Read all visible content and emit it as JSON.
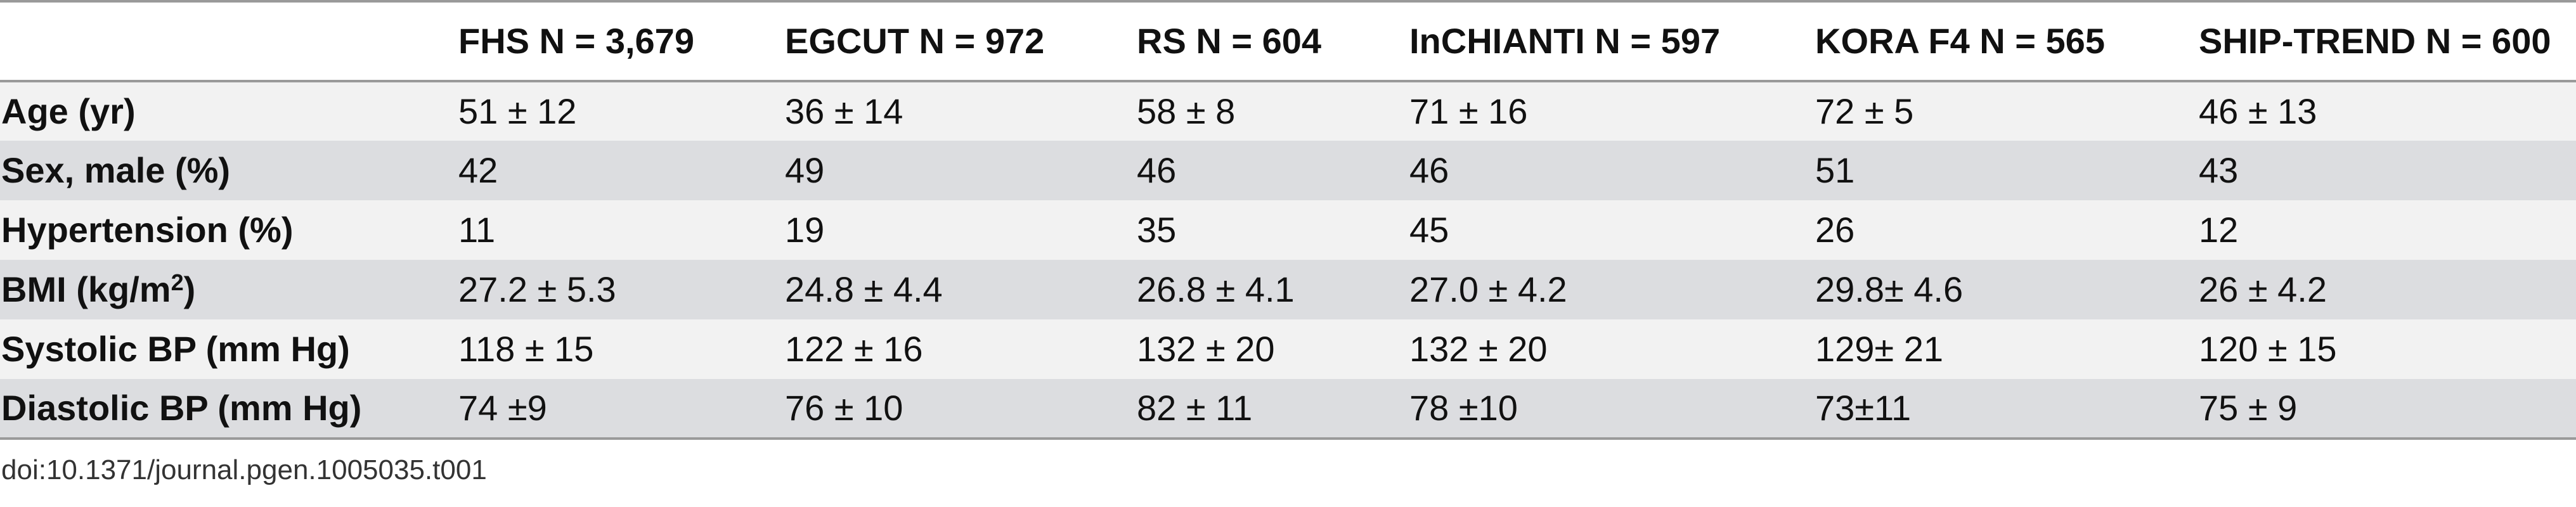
{
  "table": {
    "columns": [
      "",
      "FHS N = 3,679",
      "EGCUT N = 972",
      "RS N = 604",
      "InCHIANTI N = 597",
      "KORA F4 N = 565",
      "SHIP-TREND N = 600"
    ],
    "rows": [
      {
        "label": "Age (yr)",
        "label_sup": "",
        "label_tail": "",
        "values": [
          "51 ± 12",
          "36 ± 14",
          "58 ± 8",
          "71 ± 16",
          "72 ± 5",
          "46 ± 13"
        ]
      },
      {
        "label": "Sex, male (%)",
        "label_sup": "",
        "label_tail": "",
        "values": [
          "42",
          "49",
          "46",
          "46",
          "51",
          "43"
        ]
      },
      {
        "label": "Hypertension (%)",
        "label_sup": "",
        "label_tail": "",
        "values": [
          "11",
          "19",
          "35",
          "45",
          "26",
          "12"
        ]
      },
      {
        "label": "BMI (kg/m",
        "label_sup": "2",
        "label_tail": ")",
        "values": [
          "27.2 ± 5.3",
          "24.8 ± 4.4",
          "26.8 ± 4.1",
          "27.0 ± 4.2",
          "29.8± 4.6",
          "26 ± 4.2"
        ]
      },
      {
        "label": "Systolic BP (mm Hg)",
        "label_sup": "",
        "label_tail": "",
        "values": [
          "118 ± 15",
          "122 ± 16",
          "132 ± 20",
          "132 ± 20",
          "129± 21",
          "120 ± 15"
        ]
      },
      {
        "label": "Diastolic BP (mm Hg)",
        "label_sup": "",
        "label_tail": "",
        "values": [
          "74 ±9",
          "76 ± 10",
          "82 ± 11",
          "78 ±10",
          "73±11",
          "75 ± 9"
        ]
      }
    ]
  },
  "footnote": "doi:10.1371/journal.pgen.1005035.t001"
}
